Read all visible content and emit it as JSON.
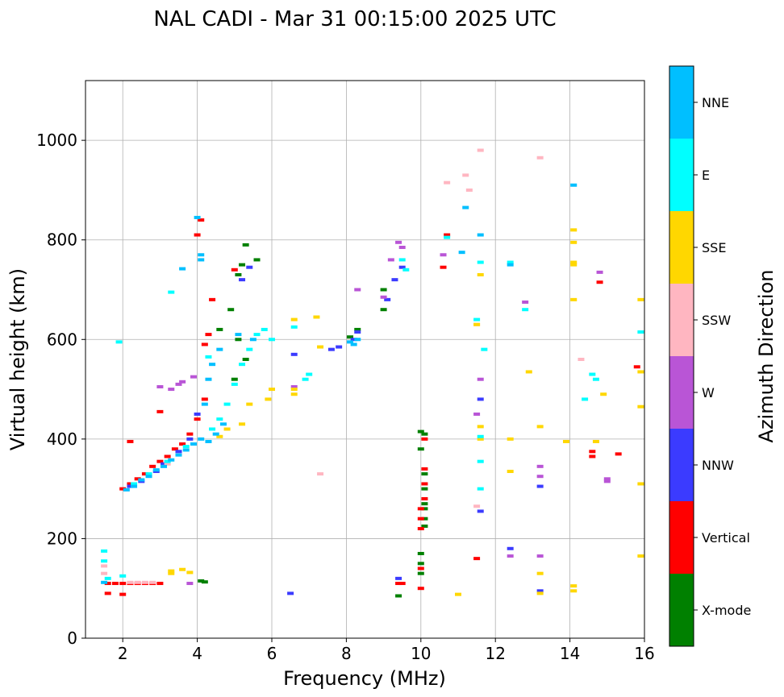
{
  "chart_data": {
    "type": "scatter",
    "title": "NAL CADI - Mar 31 00:15:00 2025 UTC",
    "xlabel": "Frequency (MHz)",
    "ylabel": "Virtual height (km)",
    "xlim": [
      1,
      16
    ],
    "ylim": [
      0,
      1120
    ],
    "xticks": [
      2,
      4,
      6,
      8,
      10,
      12,
      14,
      16
    ],
    "yticks": [
      0,
      200,
      400,
      600,
      800,
      1000
    ],
    "grid": true,
    "colorbar": {
      "label": "Azimuth Direction",
      "categories": [
        "X-mode",
        "Vertical",
        "NNW",
        "W",
        "SSW",
        "SSE",
        "E",
        "NNE"
      ],
      "colors": [
        "#008000",
        "#ff0000",
        "#3b3bff",
        "#b955d6",
        "#ffb6c1",
        "#ffd700",
        "#00ffff",
        "#00bfff"
      ]
    },
    "series": [
      {
        "name": "X-mode",
        "points": [
          [
            5.3,
            790
          ],
          [
            5.2,
            750
          ],
          [
            5.1,
            730
          ],
          [
            4.9,
            660
          ],
          [
            4.6,
            620
          ],
          [
            5.1,
            600
          ],
          [
            5.3,
            560
          ],
          [
            5.0,
            520
          ],
          [
            8.3,
            620
          ],
          [
            8.1,
            605
          ],
          [
            9.0,
            660
          ],
          [
            9.0,
            700
          ],
          [
            9.4,
            85
          ],
          [
            4.1,
            115
          ],
          [
            4.2,
            113
          ],
          [
            5.6,
            760
          ],
          [
            10.0,
            170
          ],
          [
            10.0,
            150
          ],
          [
            10.0,
            130
          ],
          [
            10.0,
            380
          ],
          [
            10.0,
            415
          ],
          [
            10.1,
            410
          ],
          [
            10.1,
            330
          ],
          [
            10.1,
            300
          ],
          [
            10.1,
            270
          ],
          [
            10.1,
            260
          ],
          [
            10.1,
            240
          ],
          [
            10.1,
            225
          ]
        ]
      },
      {
        "name": "Vertical",
        "points": [
          [
            2.0,
            300
          ],
          [
            2.2,
            310
          ],
          [
            2.4,
            320
          ],
          [
            2.6,
            330
          ],
          [
            2.8,
            345
          ],
          [
            3.0,
            355
          ],
          [
            3.2,
            365
          ],
          [
            3.4,
            380
          ],
          [
            3.6,
            390
          ],
          [
            3.8,
            410
          ],
          [
            4.0,
            440
          ],
          [
            4.2,
            480
          ],
          [
            3.0,
            455
          ],
          [
            2.2,
            395
          ],
          [
            1.6,
            110
          ],
          [
            1.8,
            110
          ],
          [
            2.0,
            110
          ],
          [
            2.2,
            110
          ],
          [
            2.4,
            110
          ],
          [
            2.6,
            110
          ],
          [
            2.8,
            110
          ],
          [
            3.0,
            110
          ],
          [
            1.6,
            90
          ],
          [
            2.0,
            88
          ],
          [
            4.0,
            810
          ],
          [
            4.1,
            840
          ],
          [
            5.0,
            740
          ],
          [
            4.4,
            680
          ],
          [
            4.3,
            610
          ],
          [
            4.2,
            590
          ],
          [
            10.0,
            100
          ],
          [
            10.0,
            140
          ],
          [
            10.0,
            220
          ],
          [
            10.0,
            240
          ],
          [
            10.0,
            260
          ],
          [
            10.1,
            280
          ],
          [
            10.1,
            310
          ],
          [
            10.1,
            340
          ],
          [
            10.1,
            400
          ],
          [
            9.5,
            110
          ],
          [
            10.7,
            810
          ],
          [
            10.6,
            745
          ],
          [
            14.8,
            715
          ],
          [
            15.3,
            370
          ],
          [
            15.8,
            545
          ],
          [
            14.6,
            375
          ],
          [
            14.6,
            365
          ],
          [
            11.5,
            160
          ],
          [
            9.4,
            110
          ]
        ]
      },
      {
        "name": "NNW",
        "points": [
          [
            2.2,
            305
          ],
          [
            2.5,
            315
          ],
          [
            2.9,
            335
          ],
          [
            3.1,
            350
          ],
          [
            3.5,
            375
          ],
          [
            3.8,
            400
          ],
          [
            4.0,
            450
          ],
          [
            7.6,
            580
          ],
          [
            7.8,
            585
          ],
          [
            8.2,
            600
          ],
          [
            8.3,
            615
          ],
          [
            9.1,
            680
          ],
          [
            9.3,
            720
          ],
          [
            9.5,
            745
          ],
          [
            11.6,
            480
          ],
          [
            11.6,
            255
          ],
          [
            12.4,
            180
          ],
          [
            13.2,
            305
          ],
          [
            13.2,
            95
          ],
          [
            9.4,
            120
          ],
          [
            6.5,
            90
          ],
          [
            5.4,
            745
          ],
          [
            5.2,
            720
          ],
          [
            6.6,
            570
          ]
        ]
      },
      {
        "name": "W",
        "points": [
          [
            3.3,
            500
          ],
          [
            3.5,
            510
          ],
          [
            3.6,
            515
          ],
          [
            3.9,
            525
          ],
          [
            3.0,
            505
          ],
          [
            8.3,
            700
          ],
          [
            9.0,
            685
          ],
          [
            9.2,
            760
          ],
          [
            9.4,
            795
          ],
          [
            9.5,
            785
          ],
          [
            10.6,
            770
          ],
          [
            11.6,
            520
          ],
          [
            11.5,
            450
          ],
          [
            12.4,
            165
          ],
          [
            12.8,
            675
          ],
          [
            13.2,
            345
          ],
          [
            13.2,
            325
          ],
          [
            13.2,
            165
          ],
          [
            14.8,
            735
          ],
          [
            15.0,
            315
          ],
          [
            15.0,
            320
          ],
          [
            6.6,
            505
          ],
          [
            3.8,
            110
          ]
        ]
      },
      {
        "name": "SSW",
        "points": [
          [
            2.2,
            112
          ],
          [
            2.4,
            112
          ],
          [
            2.6,
            112
          ],
          [
            2.8,
            112
          ],
          [
            1.5,
            130
          ],
          [
            1.5,
            145
          ],
          [
            3.2,
            350
          ],
          [
            10.7,
            915
          ],
          [
            11.2,
            930
          ],
          [
            11.3,
            900
          ],
          [
            11.6,
            980
          ],
          [
            13.2,
            965
          ],
          [
            14.3,
            560
          ],
          [
            11.5,
            265
          ],
          [
            11.5,
            630
          ],
          [
            7.3,
            330
          ]
        ]
      },
      {
        "name": "SSE",
        "points": [
          [
            3.3,
            135
          ],
          [
            3.6,
            138
          ],
          [
            3.8,
            132
          ],
          [
            3.3,
            130
          ],
          [
            4.6,
            405
          ],
          [
            4.8,
            420
          ],
          [
            5.2,
            430
          ],
          [
            5.4,
            470
          ],
          [
            5.9,
            480
          ],
          [
            6.0,
            500
          ],
          [
            6.6,
            640
          ],
          [
            7.2,
            645
          ],
          [
            7.3,
            585
          ],
          [
            6.6,
            490
          ],
          [
            6.6,
            500
          ],
          [
            11.6,
            425
          ],
          [
            11.6,
            400
          ],
          [
            11.6,
            730
          ],
          [
            12.4,
            335
          ],
          [
            12.4,
            400
          ],
          [
            12.9,
            535
          ],
          [
            13.2,
            425
          ],
          [
            13.2,
            130
          ],
          [
            13.2,
            90
          ],
          [
            14.1,
            820
          ],
          [
            14.1,
            795
          ],
          [
            14.1,
            755
          ],
          [
            14.1,
            750
          ],
          [
            14.1,
            680
          ],
          [
            14.1,
            105
          ],
          [
            14.1,
            95
          ],
          [
            14.7,
            395
          ],
          [
            14.9,
            490
          ],
          [
            15.9,
            680
          ],
          [
            15.9,
            535
          ],
          [
            15.9,
            465
          ],
          [
            15.9,
            310
          ],
          [
            15.9,
            165
          ],
          [
            11.0,
            88
          ],
          [
            13.9,
            395
          ],
          [
            11.5,
            630
          ]
        ]
      },
      {
        "name": "E",
        "points": [
          [
            2.3,
            310
          ],
          [
            2.7,
            330
          ],
          [
            3.2,
            355
          ],
          [
            3.7,
            385
          ],
          [
            4.4,
            420
          ],
          [
            4.6,
            440
          ],
          [
            4.8,
            470
          ],
          [
            5.0,
            510
          ],
          [
            5.2,
            550
          ],
          [
            5.4,
            580
          ],
          [
            5.6,
            610
          ],
          [
            5.8,
            620
          ],
          [
            6.0,
            600
          ],
          [
            6.6,
            625
          ],
          [
            6.9,
            520
          ],
          [
            7.0,
            530
          ],
          [
            9.5,
            760
          ],
          [
            9.6,
            740
          ],
          [
            10.7,
            805
          ],
          [
            11.5,
            640
          ],
          [
            11.7,
            580
          ],
          [
            11.6,
            755
          ],
          [
            11.6,
            355
          ],
          [
            11.6,
            300
          ],
          [
            11.6,
            405
          ],
          [
            12.8,
            660
          ],
          [
            12.4,
            755
          ],
          [
            14.4,
            480
          ],
          [
            14.6,
            530
          ],
          [
            14.7,
            520
          ],
          [
            15.9,
            615
          ],
          [
            1.5,
            175
          ],
          [
            1.5,
            155
          ],
          [
            1.6,
            120
          ],
          [
            2.0,
            125
          ],
          [
            4.3,
            565
          ],
          [
            3.3,
            695
          ],
          [
            1.9,
            595
          ]
        ]
      },
      {
        "name": "NNE",
        "points": [
          [
            2.1,
            298
          ],
          [
            2.3,
            305
          ],
          [
            2.5,
            318
          ],
          [
            2.7,
            325
          ],
          [
            2.9,
            338
          ],
          [
            3.1,
            345
          ],
          [
            3.3,
            358
          ],
          [
            3.5,
            368
          ],
          [
            3.7,
            378
          ],
          [
            3.9,
            390
          ],
          [
            4.1,
            400
          ],
          [
            4.3,
            395
          ],
          [
            4.5,
            410
          ],
          [
            4.7,
            430
          ],
          [
            4.2,
            470
          ],
          [
            4.3,
            520
          ],
          [
            4.4,
            550
          ],
          [
            4.6,
            580
          ],
          [
            5.1,
            610
          ],
          [
            5.5,
            600
          ],
          [
            4.1,
            760
          ],
          [
            4.1,
            770
          ],
          [
            3.6,
            742
          ],
          [
            4.0,
            845
          ],
          [
            8.1,
            595
          ],
          [
            8.2,
            590
          ],
          [
            8.3,
            600
          ],
          [
            11.2,
            865
          ],
          [
            11.1,
            775
          ],
          [
            12.4,
            750
          ],
          [
            14.1,
            910
          ],
          [
            11.6,
            810
          ],
          [
            1.5,
            112
          ]
        ]
      }
    ]
  }
}
